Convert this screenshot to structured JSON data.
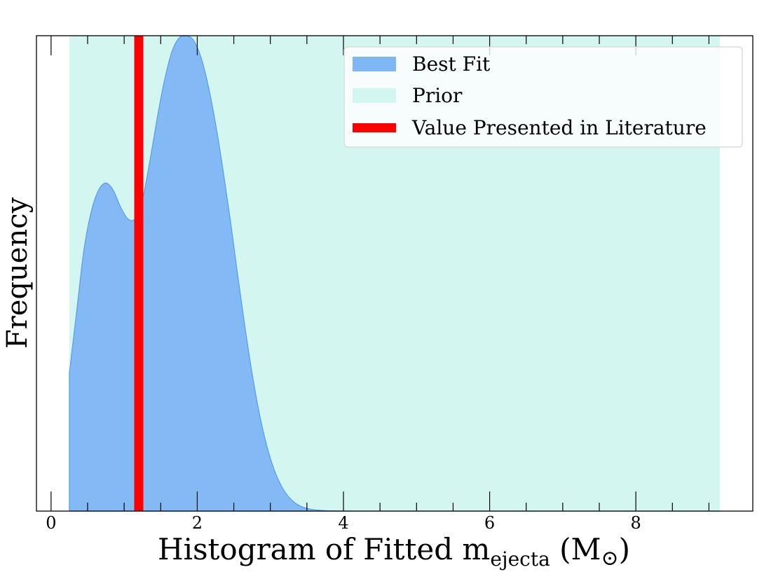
{
  "chart_data": {
    "type": "area",
    "xlabel_main": "Histogram of Fitted m",
    "xlabel_sub": "ejecta",
    "xlabel_unit_open": " (M",
    "xlabel_unit_symbol": "⊙",
    "xlabel_unit_close": ")",
    "ylabel": "Frequency",
    "xlim": [
      -0.2,
      9.6
    ],
    "ylim": [
      0,
      1.0
    ],
    "xticks_major": [
      0,
      2,
      4,
      6,
      8
    ],
    "xticks_major_labels": [
      "0",
      "2",
      "4",
      "6",
      "8"
    ],
    "grid": false,
    "legend_position": "top-right",
    "series": [
      {
        "name": "Best Fit",
        "kind": "filled-density",
        "color": "#7eb6f6",
        "edge_color": "#5a9be8",
        "x": [
          0.25,
          0.35,
          0.45,
          0.55,
          0.65,
          0.75,
          0.85,
          0.95,
          1.05,
          1.15,
          1.25,
          1.35,
          1.45,
          1.55,
          1.65,
          1.75,
          1.85,
          1.95,
          2.05,
          2.15,
          2.25,
          2.35,
          2.45,
          2.55,
          2.65,
          2.75,
          2.85,
          2.95,
          3.05,
          3.15,
          3.25,
          3.35,
          3.45,
          3.55,
          3.65,
          3.75,
          3.85,
          3.95,
          4.1,
          4.3,
          5.0,
          9.15
        ],
        "y": [
          0.29,
          0.42,
          0.55,
          0.63,
          0.675,
          0.69,
          0.675,
          0.64,
          0.615,
          0.615,
          0.655,
          0.735,
          0.825,
          0.905,
          0.965,
          0.995,
          1.0,
          0.99,
          0.955,
          0.895,
          0.815,
          0.72,
          0.615,
          0.5,
          0.39,
          0.29,
          0.205,
          0.138,
          0.088,
          0.053,
          0.03,
          0.016,
          0.008,
          0.004,
          0.002,
          0.001,
          0.0005,
          0.0002,
          0.0001,
          0.0,
          0.0,
          0.0
        ]
      },
      {
        "name": "Prior",
        "kind": "span",
        "color": "#d3f6f1",
        "x_range": [
          0.25,
          9.15
        ]
      },
      {
        "name": "Value Presented in Literature",
        "kind": "vline",
        "color": "#ff0000",
        "x": 1.2
      }
    ]
  }
}
